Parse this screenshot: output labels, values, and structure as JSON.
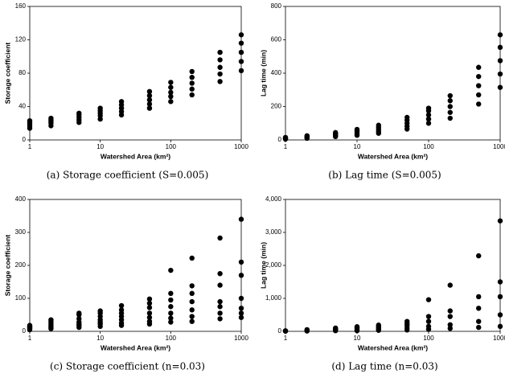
{
  "chart_data": [
    {
      "type": "scatter",
      "caption": "(a) Storage coefficient (S=0.005)",
      "x_label": "Watershed Area (km²)",
      "y_label": "Storage coefficient",
      "color": "#000000",
      "xscale": "log",
      "grid": false,
      "xlim": [
        1,
        1000
      ],
      "xticks": [
        1,
        10,
        100,
        1000
      ],
      "ylim": [
        0,
        160
      ],
      "yticks": [
        0,
        40,
        80,
        120,
        160
      ],
      "x": [
        1,
        1,
        1,
        1,
        1,
        2,
        2,
        2,
        2,
        2,
        5,
        5,
        5,
        5,
        5,
        10,
        10,
        10,
        10,
        10,
        20,
        20,
        20,
        20,
        20,
        50,
        50,
        50,
        50,
        50,
        100,
        100,
        100,
        100,
        100,
        200,
        200,
        200,
        200,
        200,
        500,
        500,
        500,
        500,
        500,
        1000,
        1000,
        1000,
        1000,
        1000
      ],
      "values": [
        14,
        17,
        19,
        21,
        23,
        17,
        20,
        22,
        24,
        26,
        21,
        24,
        27,
        30,
        32,
        25,
        29,
        32,
        35,
        38,
        30,
        34,
        38,
        42,
        46,
        38,
        43,
        48,
        53,
        58,
        46,
        52,
        57,
        63,
        69,
        54,
        61,
        68,
        75,
        82,
        70,
        79,
        87,
        96,
        105,
        83,
        94,
        105,
        116,
        126
      ]
    },
    {
      "type": "scatter",
      "caption": "(b) Lag time (S=0.005)",
      "x_label": "Watershed Area (km²)",
      "y_label": "Lag time (min)",
      "color": "#000000",
      "xscale": "log",
      "grid": false,
      "xlim": [
        1,
        1000
      ],
      "xticks": [
        1,
        10,
        100,
        1000
      ],
      "ylim": [
        0,
        800
      ],
      "yticks": [
        0,
        200,
        400,
        600,
        800
      ],
      "x": [
        1,
        1,
        1,
        1,
        1,
        2,
        2,
        2,
        2,
        2,
        5,
        5,
        5,
        5,
        5,
        10,
        10,
        10,
        10,
        10,
        20,
        20,
        20,
        20,
        20,
        50,
        50,
        50,
        50,
        50,
        100,
        100,
        100,
        100,
        100,
        200,
        200,
        200,
        200,
        200,
        500,
        500,
        500,
        500,
        500,
        1000,
        1000,
        1000,
        1000,
        1000
      ],
      "values": [
        5,
        8,
        10,
        12,
        15,
        10,
        14,
        18,
        22,
        25,
        20,
        26,
        32,
        38,
        44,
        28,
        37,
        46,
        55,
        63,
        40,
        52,
        64,
        76,
        88,
        65,
        82,
        100,
        118,
        135,
        100,
        125,
        150,
        175,
        190,
        130,
        165,
        200,
        235,
        265,
        215,
        270,
        325,
        380,
        435,
        315,
        395,
        475,
        555,
        630
      ]
    },
    {
      "type": "scatter",
      "caption": "(c) Storage coefficient (n=0.03)",
      "x_label": "Watershed Area (km²)",
      "y_label": "Storage coefficient",
      "color": "#000000",
      "xscale": "log",
      "grid": false,
      "xlim": [
        1,
        1000
      ],
      "xticks": [
        1,
        10,
        100,
        1000
      ],
      "ylim": [
        0,
        400
      ],
      "yticks": [
        0,
        100,
        200,
        300,
        400
      ],
      "x": [
        1,
        1,
        1,
        1,
        1,
        1,
        1,
        2,
        2,
        2,
        2,
        2,
        2,
        2,
        5,
        5,
        5,
        5,
        5,
        5,
        5,
        10,
        10,
        10,
        10,
        10,
        10,
        10,
        20,
        20,
        20,
        20,
        20,
        20,
        20,
        50,
        50,
        50,
        50,
        50,
        50,
        50,
        100,
        100,
        100,
        100,
        100,
        100,
        100,
        200,
        200,
        200,
        200,
        200,
        200,
        200,
        500,
        500,
        500,
        500,
        500,
        500,
        500,
        1000,
        1000,
        1000,
        1000,
        1000,
        1000,
        1000
      ],
      "values": [
        5,
        8,
        10,
        12,
        14,
        16,
        18,
        8,
        12,
        16,
        20,
        25,
        30,
        35,
        12,
        18,
        22,
        28,
        38,
        50,
        55,
        15,
        22,
        28,
        35,
        45,
        55,
        62,
        18,
        25,
        35,
        45,
        55,
        65,
        78,
        22,
        30,
        42,
        55,
        72,
        85,
        98,
        28,
        40,
        55,
        75,
        95,
        115,
        185,
        30,
        45,
        65,
        90,
        115,
        138,
        222,
        38,
        55,
        75,
        90,
        140,
        175,
        283,
        42,
        55,
        70,
        100,
        170,
        210,
        340
      ]
    },
    {
      "type": "scatter",
      "caption": "(d) Lag time (n=0.03)",
      "x_label": "Watershed Area (km²)",
      "y_label": "Lag time (min)",
      "color": "#000000",
      "xscale": "log",
      "grid": false,
      "xlim": [
        1,
        1000
      ],
      "xticks": [
        1,
        10,
        100,
        1000
      ],
      "ylim": [
        0,
        4000
      ],
      "yticks": [
        0,
        {
          "value": 1000,
          "label": "1,000"
        },
        {
          "value": 2000,
          "label": "2,000"
        },
        {
          "value": 3000,
          "label": "3,000"
        },
        {
          "value": 4000,
          "label": "4,000"
        }
      ],
      "x": [
        1,
        1,
        1,
        1,
        1,
        2,
        2,
        2,
        2,
        2,
        5,
        5,
        5,
        5,
        5,
        10,
        10,
        10,
        10,
        10,
        20,
        20,
        20,
        20,
        20,
        50,
        50,
        50,
        50,
        50,
        100,
        100,
        100,
        100,
        100,
        200,
        200,
        200,
        200,
        200,
        500,
        500,
        500,
        500,
        500,
        1000,
        1000,
        1000,
        1000,
        1000
      ],
      "values": [
        5,
        8,
        10,
        12,
        15,
        10,
        20,
        30,
        40,
        50,
        20,
        40,
        60,
        80,
        100,
        20,
        50,
        80,
        110,
        140,
        30,
        70,
        110,
        150,
        190,
        40,
        100,
        170,
        230,
        300,
        60,
        150,
        300,
        450,
        960,
        90,
        200,
        450,
        620,
        1400,
        120,
        300,
        700,
        1050,
        2290,
        150,
        500,
        1050,
        1500,
        3350
      ]
    }
  ]
}
